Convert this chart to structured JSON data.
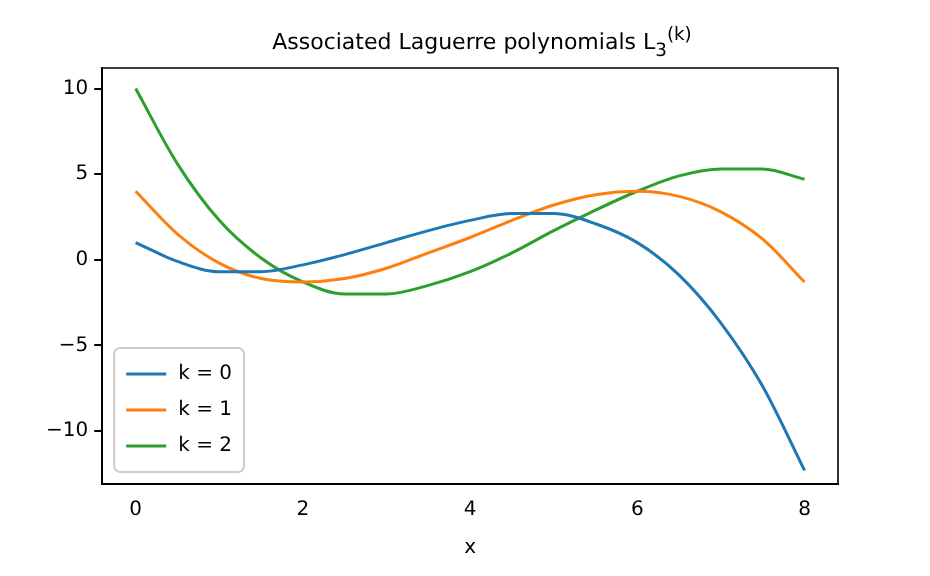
{
  "chart_data": {
    "type": "line",
    "title": "Associated Laguerre polynomials L$_{3}$$^{(k)}$",
    "xlabel": "x",
    "x": [
      0,
      0.5,
      1,
      1.5,
      2,
      2.5,
      3,
      3.5,
      4,
      4.5,
      5,
      5.5,
      6,
      6.5,
      7,
      7.5,
      8
    ],
    "series": [
      {
        "name": "k = 0",
        "color": "#1f77b4",
        "values": [
          1,
          -0.1,
          -0.7,
          -0.7,
          -0.3,
          0.3,
          1,
          1.7,
          2.3,
          2.7,
          2.7,
          2.1,
          1,
          -0.9,
          -3.7,
          -7.4,
          -12.3
        ]
      },
      {
        "name": "k = 1",
        "color": "#ff7f0e",
        "values": [
          4,
          1.5,
          -0.2,
          -1.1,
          -1.3,
          -1.1,
          -0.5,
          0.4,
          1.3,
          2.3,
          3.2,
          3.8,
          4,
          3.7,
          2.8,
          1.2,
          -1.3
        ]
      },
      {
        "name": "k = 2",
        "color": "#2ca02c",
        "values": [
          10,
          5.6,
          2.3,
          0.1,
          -1.3,
          -2,
          -2,
          -1.5,
          -0.7,
          0.4,
          1.7,
          2.9,
          4,
          4.9,
          5.3,
          5.3,
          4.7
        ]
      }
    ],
    "xlim": [
      -0.4,
      8.4
    ],
    "xticks": [
      0,
      2,
      4,
      6,
      8
    ],
    "ylim": [
      -13.1,
      11.2
    ],
    "yticks": [
      -10,
      -5,
      0,
      5,
      10
    ],
    "grid": false,
    "legend": "bottom left",
    "marker": "none",
    "line_style": "solid"
  }
}
